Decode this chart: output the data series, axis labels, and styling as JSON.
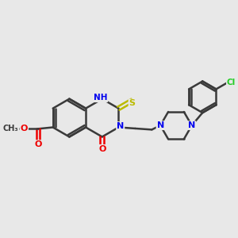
{
  "bg_color": "#e8e8e8",
  "bond_color": "#3a3a3a",
  "bond_width": 1.8,
  "figsize": [
    3.0,
    3.0
  ],
  "dpi": 100,
  "atom_colors": {
    "N": "#0000ee",
    "O": "#ee0000",
    "S": "#bbbb00",
    "Cl": "#22cc22",
    "C": "#3a3a3a"
  },
  "font_size": 8.0
}
